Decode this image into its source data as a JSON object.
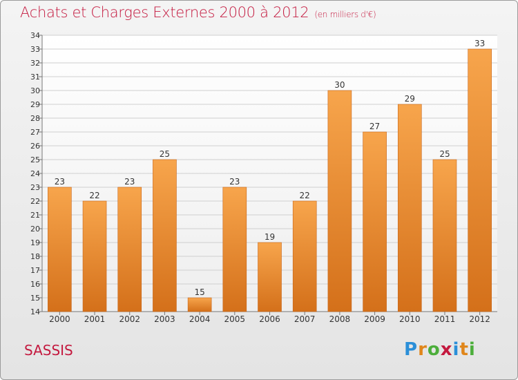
{
  "title": "Achats et Charges Externes 2000 à 2012",
  "subtitle": "(en milliers d'€)",
  "place": "SASSIS",
  "logo": {
    "text": "Proxiti",
    "letters": [
      "P",
      "r",
      "o",
      "x",
      "i",
      "t",
      "i"
    ],
    "colors": [
      "#2b8fd8",
      "#e0861b",
      "#4cae3b",
      "#c4193f",
      "#2b8fd8",
      "#e0861b",
      "#4cae3b"
    ]
  },
  "colors": {
    "title": "#c4193f",
    "bar_top": "#f7a54c",
    "bar_bottom": "#d4701a",
    "grid": "#cfcfcf"
  },
  "chart_data": {
    "type": "bar",
    "categories": [
      "2000",
      "2001",
      "2002",
      "2003",
      "2004",
      "2005",
      "2006",
      "2007",
      "2008",
      "2009",
      "2010",
      "2011",
      "2012"
    ],
    "values": [
      23,
      22,
      23,
      25,
      15,
      23,
      19,
      22,
      30,
      27,
      29,
      25,
      33
    ],
    "ylim": [
      14,
      34
    ],
    "yticks": [
      14,
      15,
      16,
      17,
      18,
      19,
      20,
      21,
      22,
      23,
      24,
      25,
      26,
      27,
      28,
      29,
      30,
      31,
      32,
      33,
      34
    ],
    "grid": true,
    "legend": "none"
  }
}
